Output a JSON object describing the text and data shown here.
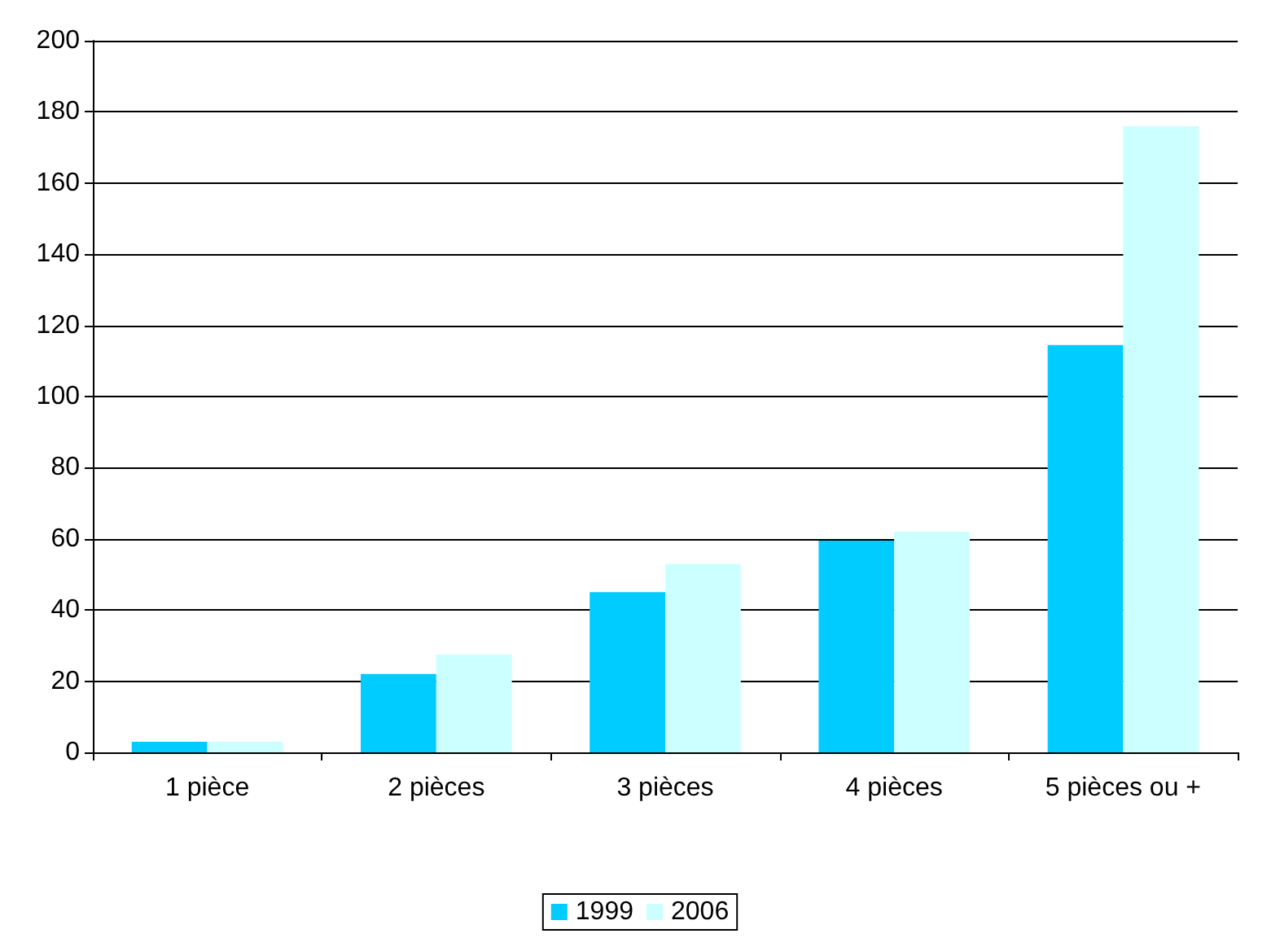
{
  "chart_data": {
    "type": "bar",
    "categories": [
      "1 pièce",
      "2 pièces",
      "3 pièces",
      "4 pièces",
      "5 pièces ou +"
    ],
    "series": [
      {
        "name": "1999",
        "color": "#00ccff",
        "values": [
          3,
          22,
          45,
          59.5,
          114.5
        ]
      },
      {
        "name": "2006",
        "color": "#ccffff",
        "values": [
          3,
          27.5,
          53,
          62,
          176
        ]
      }
    ],
    "ylim": [
      0,
      200
    ],
    "yticks": [
      0,
      20,
      40,
      60,
      80,
      100,
      120,
      140,
      160,
      180,
      200
    ],
    "grid": "y",
    "legend": "bottom"
  }
}
